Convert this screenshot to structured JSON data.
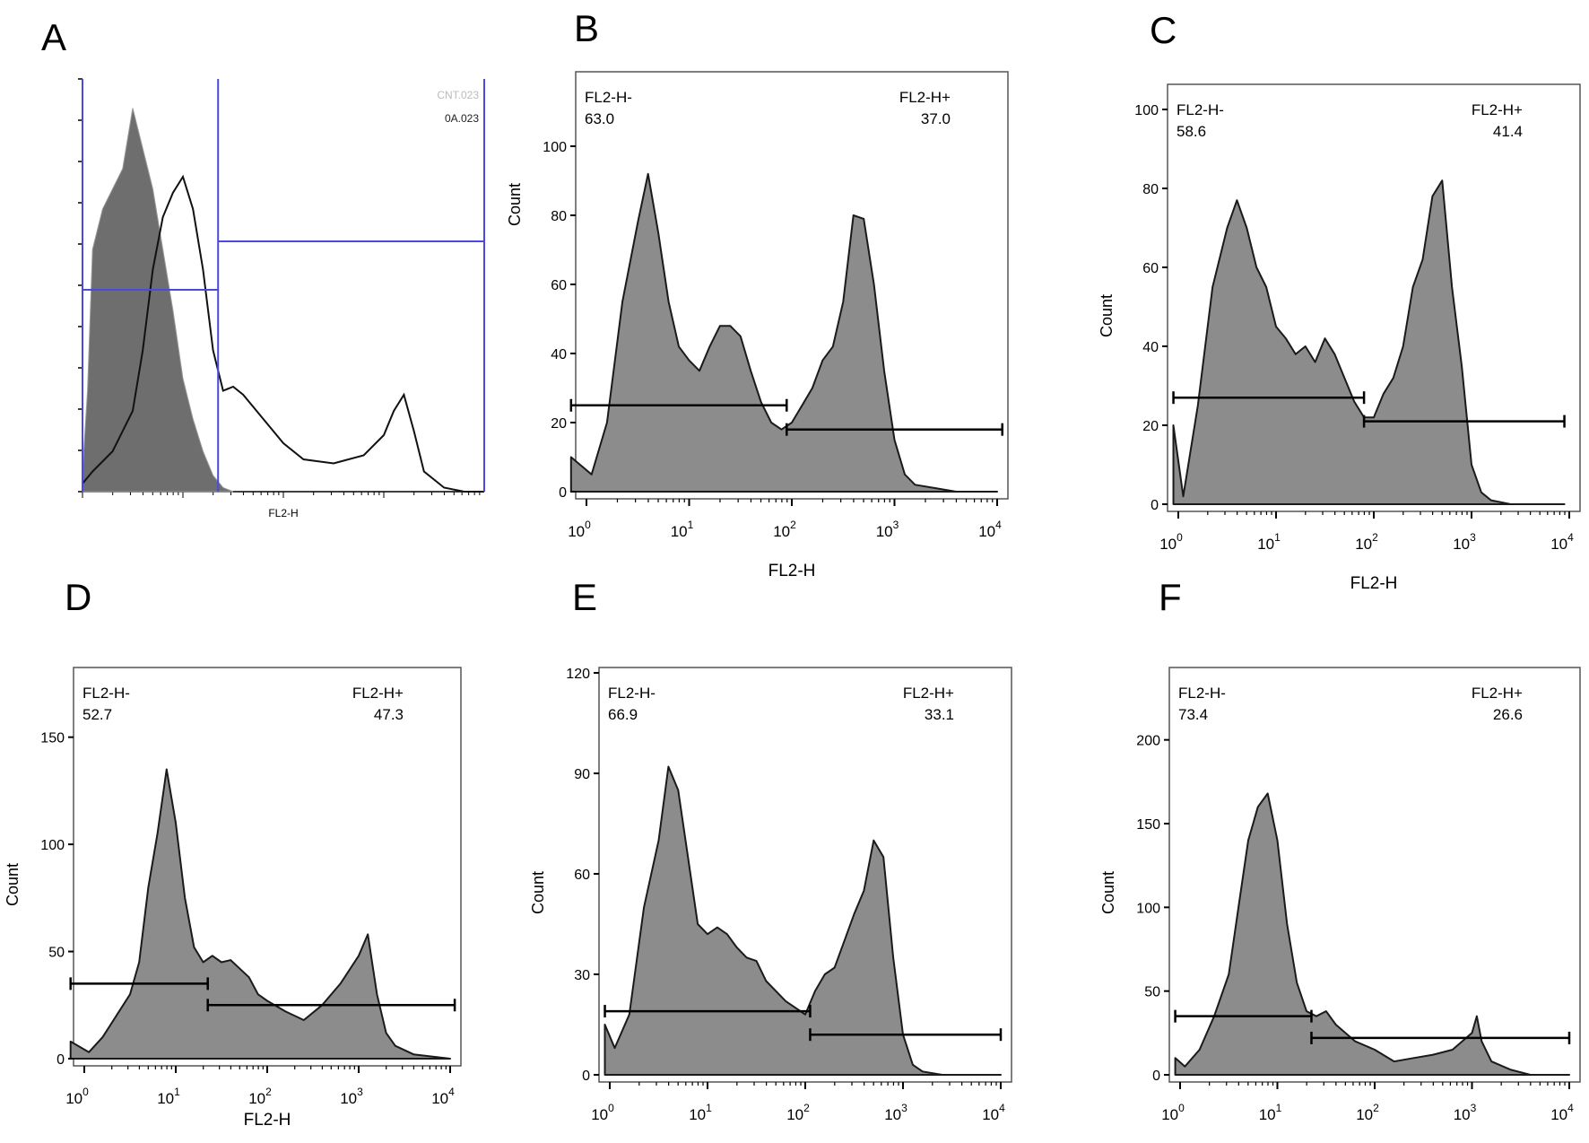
{
  "colors": {
    "fill": "#8c8c8c",
    "stroke": "#1a1a1a",
    "gateBlue": "#4a4ae0",
    "frame": "#555555"
  },
  "chart_data": [
    {
      "id": "A",
      "type": "area",
      "panel_label": "A",
      "xlabel": "FL2-H",
      "legend_entries": [
        "CNT.023",
        "0A.023"
      ],
      "gate_boundary_log10": 1.35,
      "x_log_range": [
        0,
        4
      ],
      "y_range": [
        0,
        100
      ],
      "series": [
        {
          "name": "CNT.023",
          "style": "filled",
          "x": [
            0,
            0.05,
            0.1,
            0.2,
            0.3,
            0.4,
            0.5,
            0.6,
            0.7,
            0.8,
            0.9,
            1.0,
            1.1,
            1.2,
            1.3,
            1.4,
            1.5
          ],
          "y": [
            5,
            25,
            60,
            70,
            75,
            80,
            95,
            85,
            75,
            60,
            45,
            28,
            18,
            10,
            4,
            1,
            0
          ]
        },
        {
          "name": "0A.023",
          "style": "outline",
          "x": [
            0,
            0.1,
            0.3,
            0.5,
            0.6,
            0.7,
            0.8,
            0.9,
            1.0,
            1.1,
            1.2,
            1.3,
            1.4,
            1.5,
            1.6,
            1.8,
            2.0,
            2.2,
            2.5,
            2.8,
            3.0,
            3.1,
            3.2,
            3.3,
            3.4,
            3.6,
            3.8,
            4.0
          ],
          "y": [
            2,
            5,
            10,
            20,
            35,
            55,
            68,
            74,
            78,
            70,
            55,
            35,
            25,
            26,
            24,
            18,
            12,
            8,
            7,
            9,
            14,
            20,
            24,
            15,
            5,
            1,
            0,
            0
          ]
        }
      ],
      "gates": [
        {
          "name": "negative gate",
          "x_log": [
            0,
            1.35
          ],
          "y": 50
        },
        {
          "name": "positive gate",
          "x_log": [
            1.35,
            4
          ],
          "y": 62
        }
      ]
    },
    {
      "id": "B",
      "type": "area",
      "panel_label": "B",
      "xlabel": "FL2-H",
      "ylabel": "Count",
      "x_log_range": [
        0,
        4
      ],
      "x_ticks": [
        "0",
        "1",
        "2",
        "3",
        "4"
      ],
      "y_range": [
        0,
        120
      ],
      "y_ticks": [
        0,
        20,
        40,
        60,
        80,
        100
      ],
      "gate_neg_label": "FL2-H-",
      "gate_neg_value": "63.0",
      "gate_pos_label": "FL2-H+",
      "gate_pos_value": "37.0",
      "gates": [
        {
          "x_log": [
            -0.15,
            1.95
          ],
          "y": 25
        },
        {
          "x_log": [
            1.95,
            4.05
          ],
          "y": 18
        }
      ],
      "x": [
        -0.15,
        0.05,
        0.2,
        0.35,
        0.5,
        0.6,
        0.7,
        0.8,
        0.9,
        1.0,
        1.1,
        1.2,
        1.3,
        1.4,
        1.5,
        1.6,
        1.7,
        1.8,
        1.9,
        2.0,
        2.1,
        2.2,
        2.3,
        2.4,
        2.5,
        2.6,
        2.7,
        2.8,
        2.9,
        3.0,
        3.1,
        3.2,
        3.4,
        3.6,
        4.0
      ],
      "y": [
        10,
        5,
        20,
        55,
        78,
        92,
        75,
        55,
        42,
        38,
        35,
        42,
        48,
        48,
        45,
        35,
        26,
        20,
        18,
        20,
        25,
        30,
        38,
        42,
        55,
        80,
        79,
        60,
        35,
        15,
        5,
        2,
        1,
        0,
        0
      ]
    },
    {
      "id": "C",
      "type": "area",
      "panel_label": "C",
      "xlabel": "FL2-H",
      "ylabel": "Count",
      "x_log_range": [
        0,
        4
      ],
      "x_ticks": [
        "0",
        "1",
        "2",
        "3",
        "4"
      ],
      "y_range": [
        0,
        105
      ],
      "y_ticks": [
        0,
        20,
        40,
        60,
        80,
        100
      ],
      "gate_neg_label": "FL2-H-",
      "gate_neg_value": "58.6",
      "gate_pos_label": "FL2-H+",
      "gate_pos_value": "41.4",
      "gates": [
        {
          "x_log": [
            -0.05,
            1.9
          ],
          "y": 27
        },
        {
          "x_log": [
            1.9,
            3.95
          ],
          "y": 21
        }
      ],
      "x": [
        -0.05,
        0.05,
        0.2,
        0.35,
        0.5,
        0.6,
        0.7,
        0.8,
        0.9,
        1.0,
        1.1,
        1.2,
        1.3,
        1.4,
        1.5,
        1.6,
        1.7,
        1.8,
        1.9,
        2.0,
        2.1,
        2.2,
        2.3,
        2.4,
        2.5,
        2.6,
        2.7,
        2.8,
        2.9,
        3.0,
        3.1,
        3.2,
        3.4,
        3.95
      ],
      "y": [
        20,
        2,
        25,
        55,
        70,
        77,
        70,
        60,
        55,
        45,
        42,
        38,
        40,
        36,
        42,
        38,
        32,
        26,
        22,
        22,
        28,
        32,
        40,
        55,
        62,
        78,
        82,
        55,
        35,
        10,
        3,
        1,
        0,
        0
      ]
    },
    {
      "id": "D",
      "type": "area",
      "panel_label": "D",
      "xlabel": "FL2-H",
      "ylabel": "Count",
      "x_log_range": [
        0,
        4
      ],
      "x_ticks": [
        "0",
        "1",
        "2",
        "3",
        "4"
      ],
      "y_range": [
        0,
        180
      ],
      "y_ticks": [
        0,
        50,
        100,
        150
      ],
      "gate_neg_label": "FL2-H-",
      "gate_neg_value": "52.7",
      "gate_pos_label": "FL2-H+",
      "gate_pos_value": "47.3",
      "gates": [
        {
          "x_log": [
            -0.15,
            1.35
          ],
          "y": 35
        },
        {
          "x_log": [
            1.35,
            4.05
          ],
          "y": 25
        }
      ],
      "x": [
        -0.15,
        0.05,
        0.2,
        0.35,
        0.5,
        0.6,
        0.7,
        0.8,
        0.9,
        1.0,
        1.1,
        1.2,
        1.3,
        1.4,
        1.5,
        1.6,
        1.7,
        1.8,
        1.9,
        2.0,
        2.2,
        2.4,
        2.6,
        2.8,
        3.0,
        3.1,
        3.2,
        3.3,
        3.4,
        3.6,
        3.8,
        4.0
      ],
      "y": [
        8,
        3,
        10,
        20,
        30,
        45,
        80,
        105,
        135,
        110,
        75,
        52,
        45,
        48,
        45,
        46,
        42,
        38,
        30,
        27,
        22,
        18,
        25,
        35,
        48,
        58,
        30,
        12,
        6,
        2,
        1,
        0
      ]
    },
    {
      "id": "E",
      "type": "area",
      "panel_label": "E",
      "ylabel": "Count",
      "x_log_range": [
        0,
        4
      ],
      "x_ticks": [
        "0",
        "1",
        "2",
        "3",
        "4"
      ],
      "y_range": [
        0,
        120
      ],
      "y_ticks": [
        0,
        30,
        60,
        90,
        120
      ],
      "gate_neg_label": "FL2-H-",
      "gate_neg_value": "66.9",
      "gate_pos_label": "FL2-H+",
      "gate_pos_value": "33.1",
      "gates": [
        {
          "x_log": [
            -0.05,
            2.05
          ],
          "y": 19
        },
        {
          "x_log": [
            2.05,
            4.0
          ],
          "y": 12
        }
      ],
      "x": [
        -0.05,
        0.05,
        0.2,
        0.35,
        0.5,
        0.6,
        0.7,
        0.8,
        0.9,
        1.0,
        1.1,
        1.2,
        1.3,
        1.4,
        1.5,
        1.6,
        1.7,
        1.8,
        1.9,
        2.0,
        2.1,
        2.2,
        2.3,
        2.4,
        2.5,
        2.6,
        2.7,
        2.8,
        2.9,
        3.0,
        3.1,
        3.2,
        3.4,
        3.6,
        4.0
      ],
      "y": [
        15,
        8,
        18,
        50,
        70,
        92,
        85,
        65,
        45,
        42,
        44,
        42,
        38,
        35,
        34,
        28,
        25,
        22,
        20,
        18,
        25,
        30,
        32,
        40,
        48,
        55,
        70,
        65,
        35,
        12,
        3,
        1,
        0,
        0,
        0
      ]
    },
    {
      "id": "F",
      "type": "area",
      "panel_label": "F",
      "ylabel": "Count",
      "x_log_range": [
        0,
        4
      ],
      "x_ticks": [
        "0",
        "1",
        "2",
        "3",
        "4"
      ],
      "y_range": [
        0,
        240
      ],
      "y_ticks": [
        0,
        50,
        100,
        150,
        200
      ],
      "gate_neg_label": "FL2-H-",
      "gate_neg_value": "73.4",
      "gate_pos_label": "FL2-H+",
      "gate_pos_value": "26.6",
      "gates": [
        {
          "x_log": [
            -0.05,
            1.35
          ],
          "y": 35
        },
        {
          "x_log": [
            1.35,
            4.0
          ],
          "y": 22
        }
      ],
      "x": [
        -0.05,
        0.05,
        0.2,
        0.35,
        0.5,
        0.6,
        0.7,
        0.8,
        0.9,
        1.0,
        1.1,
        1.2,
        1.3,
        1.4,
        1.5,
        1.6,
        1.8,
        2.0,
        2.2,
        2.4,
        2.6,
        2.8,
        3.0,
        3.05,
        3.1,
        3.2,
        3.4,
        3.6,
        4.0
      ],
      "y": [
        10,
        5,
        15,
        35,
        60,
        100,
        140,
        160,
        168,
        140,
        90,
        55,
        38,
        35,
        38,
        30,
        20,
        15,
        8,
        10,
        12,
        15,
        25,
        35,
        20,
        8,
        3,
        0,
        0
      ]
    }
  ]
}
